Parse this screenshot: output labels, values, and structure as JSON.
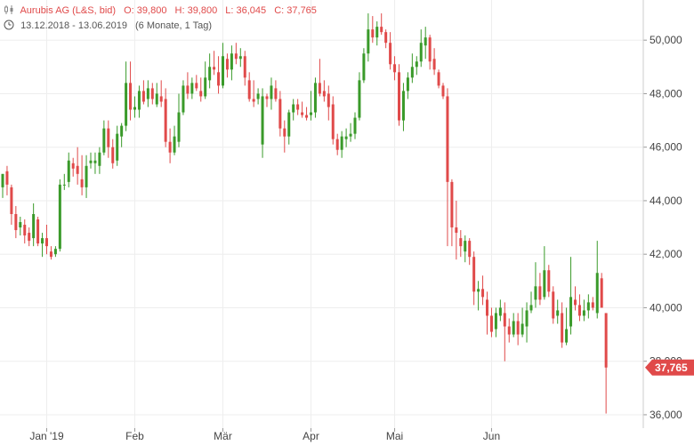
{
  "header": {
    "title": "Aurubis AG (L&S, bid)",
    "open": "O: 39,800",
    "high": "H: 39,800",
    "low": "L: 36,045",
    "close": "C: 37,765",
    "date_range": "13.12.2018 - 13.06.2019",
    "period": "(6 Monate, 1 Tag)",
    "icons": [
      "candlestick-icon",
      "clock-icon"
    ]
  },
  "colors": {
    "up": "#3a9a2a",
    "down": "#e04a4a",
    "grid": "#eeeeee",
    "badge": "#e04a4a"
  },
  "last_price_label": "37,765",
  "chart_data": {
    "type": "candlestick",
    "title": "Aurubis AG (L&S, bid)",
    "ylim": [
      35500,
      51500
    ],
    "y_ticks": [
      36000,
      38000,
      40000,
      42000,
      44000,
      46000,
      48000,
      50000
    ],
    "y_tick_labels": [
      "36,000",
      "38,000",
      "40,000",
      "42,000",
      "44,000",
      "46,000",
      "48,000",
      "50,000"
    ],
    "x_ticks": [
      {
        "label": "Jan '19",
        "index": 10
      },
      {
        "label": "Feb",
        "index": 30
      },
      {
        "label": "Mär",
        "index": 50
      },
      {
        "label": "Apr",
        "index": 70
      },
      {
        "label": "Mai",
        "index": 89
      },
      {
        "label": "Jun",
        "index": 111
      }
    ],
    "last_price": 37765,
    "candles": [
      [
        44500,
        45000,
        44100,
        45000
      ],
      [
        45100,
        45300,
        44200,
        44600
      ],
      [
        44500,
        44600,
        43100,
        43500
      ],
      [
        43500,
        43800,
        42600,
        42900
      ],
      [
        43000,
        43400,
        42700,
        43200
      ],
      [
        43100,
        43300,
        42400,
        42700
      ],
      [
        42800,
        43000,
        42300,
        42500
      ],
      [
        42600,
        43900,
        42300,
        43500
      ],
      [
        43300,
        43400,
        42300,
        42400
      ],
      [
        42400,
        42800,
        41900,
        42600
      ],
      [
        42600,
        43100,
        42000,
        42300
      ],
      [
        42100,
        42300,
        41800,
        41900
      ],
      [
        42000,
        42300,
        41900,
        42200
      ],
      [
        42200,
        44800,
        42100,
        44600
      ],
      [
        44600,
        45000,
        44400,
        44600
      ],
      [
        44700,
        45800,
        44500,
        45500
      ],
      [
        45400,
        45600,
        44900,
        45200
      ],
      [
        45300,
        46000,
        44600,
        45000
      ],
      [
        44800,
        45700,
        44200,
        44500
      ],
      [
        44500,
        45700,
        44100,
        45300
      ],
      [
        45400,
        45800,
        45200,
        45500
      ],
      [
        45400,
        45800,
        45000,
        45500
      ],
      [
        45300,
        46000,
        45000,
        45800
      ],
      [
        45800,
        47000,
        45700,
        46700
      ],
      [
        46700,
        47000,
        45600,
        46000
      ],
      [
        46000,
        46300,
        45200,
        45400
      ],
      [
        45500,
        46800,
        45300,
        46500
      ],
      [
        46400,
        46900,
        46000,
        46800
      ],
      [
        46800,
        49200,
        46600,
        48400
      ],
      [
        48400,
        49200,
        47000,
        47400
      ],
      [
        47400,
        47900,
        47100,
        47500
      ],
      [
        47400,
        48300,
        47100,
        48100
      ],
      [
        48100,
        48500,
        47600,
        47700
      ],
      [
        47800,
        48500,
        47500,
        48200
      ],
      [
        48200,
        48400,
        47600,
        47800
      ],
      [
        47600,
        48400,
        47500,
        48000
      ],
      [
        47900,
        48500,
        47500,
        47700
      ],
      [
        47800,
        48200,
        46000,
        46200
      ],
      [
        46200,
        46700,
        45400,
        45800
      ],
      [
        45800,
        46800,
        45700,
        46400
      ],
      [
        46200,
        48000,
        46000,
        47300
      ],
      [
        47300,
        48500,
        47200,
        48300
      ],
      [
        48300,
        48800,
        47800,
        48000
      ],
      [
        48000,
        48600,
        47800,
        48400
      ],
      [
        48400,
        48700,
        48100,
        48200
      ],
      [
        48100,
        48600,
        47700,
        47900
      ],
      [
        47900,
        49200,
        47800,
        48600
      ],
      [
        48500,
        49500,
        48200,
        49000
      ],
      [
        49000,
        49600,
        48700,
        48900
      ],
      [
        48800,
        49400,
        48000,
        48300
      ],
      [
        48300,
        49900,
        48200,
        49400
      ],
      [
        49300,
        49500,
        48600,
        48900
      ],
      [
        48900,
        49800,
        48500,
        49500
      ],
      [
        49500,
        49900,
        49100,
        49300
      ],
      [
        49300,
        49700,
        49000,
        49400
      ],
      [
        49400,
        49600,
        48300,
        48600
      ],
      [
        48500,
        48800,
        47700,
        47800
      ],
      [
        47800,
        48500,
        47500,
        47700
      ],
      [
        47800,
        48200,
        47600,
        48000
      ],
      [
        46100,
        48200,
        45600,
        47900
      ],
      [
        47900,
        48000,
        47500,
        47800
      ],
      [
        47800,
        48600,
        47400,
        48300
      ],
      [
        48200,
        48500,
        47700,
        47800
      ],
      [
        47800,
        48100,
        46400,
        46700
      ],
      [
        46700,
        47000,
        45800,
        46400
      ],
      [
        46400,
        47400,
        46100,
        47300
      ],
      [
        47300,
        47800,
        47000,
        47600
      ],
      [
        47600,
        47800,
        47200,
        47400
      ],
      [
        47300,
        47700,
        47100,
        47200
      ],
      [
        47200,
        47500,
        47000,
        47100
      ],
      [
        47200,
        48100,
        47000,
        47300
      ],
      [
        47300,
        48600,
        47100,
        48400
      ],
      [
        48400,
        49300,
        47900,
        48000
      ],
      [
        48100,
        48500,
        47700,
        47900
      ],
      [
        48000,
        48300,
        47000,
        47500
      ],
      [
        47600,
        47900,
        46100,
        46300
      ],
      [
        46300,
        46500,
        45700,
        45900
      ],
      [
        45900,
        46600,
        45600,
        46400
      ],
      [
        46300,
        46700,
        46000,
        46400
      ],
      [
        46400,
        46900,
        46200,
        46500
      ],
      [
        46500,
        47300,
        46300,
        47100
      ],
      [
        47100,
        48800,
        47000,
        48500
      ],
      [
        48500,
        49700,
        48400,
        49500
      ],
      [
        49500,
        51000,
        49200,
        50400
      ],
      [
        50400,
        50900,
        49900,
        50100
      ],
      [
        50100,
        50700,
        49800,
        50500
      ],
      [
        50500,
        51000,
        50200,
        50300
      ],
      [
        50300,
        50400,
        49700,
        49900
      ],
      [
        49900,
        50300,
        48900,
        49100
      ],
      [
        49100,
        49400,
        48500,
        48800
      ],
      [
        48800,
        49100,
        46800,
        47000
      ],
      [
        47000,
        48400,
        46600,
        48100
      ],
      [
        48100,
        48800,
        47800,
        48600
      ],
      [
        48600,
        49500,
        48400,
        49000
      ],
      [
        49000,
        49400,
        48700,
        49200
      ],
      [
        49200,
        50400,
        49000,
        49900
      ],
      [
        49800,
        50500,
        49300,
        50100
      ],
      [
        50100,
        50200,
        48900,
        49200
      ],
      [
        49300,
        49700,
        48700,
        48900
      ],
      [
        48800,
        48900,
        48200,
        48300
      ],
      [
        48300,
        48400,
        47800,
        47900
      ],
      [
        47900,
        48200,
        42300,
        44700
      ],
      [
        44700,
        44800,
        42300,
        43000
      ],
      [
        43000,
        44000,
        41800,
        42800
      ],
      [
        42600,
        42900,
        41900,
        42300
      ],
      [
        42100,
        42700,
        41700,
        42500
      ],
      [
        42500,
        42600,
        41600,
        41900
      ],
      [
        41900,
        42100,
        40100,
        40600
      ],
      [
        40600,
        41000,
        39900,
        40700
      ],
      [
        40700,
        41200,
        40100,
        40400
      ],
      [
        40300,
        40600,
        39000,
        39700
      ],
      [
        39700,
        40000,
        38900,
        39100
      ],
      [
        39200,
        40000,
        38900,
        39800
      ],
      [
        39700,
        40300,
        39500,
        40000
      ],
      [
        39800,
        40200,
        38000,
        39300
      ],
      [
        39300,
        39600,
        38700,
        39000
      ],
      [
        39000,
        39800,
        38900,
        39500
      ],
      [
        39500,
        39800,
        38600,
        39000
      ],
      [
        39000,
        40000,
        38900,
        39400
      ],
      [
        39300,
        40200,
        38700,
        39900
      ],
      [
        39900,
        40600,
        39800,
        40100
      ],
      [
        40300,
        41700,
        40000,
        40800
      ],
      [
        40800,
        41300,
        40100,
        40300
      ],
      [
        40400,
        42300,
        40300,
        41400
      ],
      [
        41400,
        41600,
        40400,
        40600
      ],
      [
        40600,
        40800,
        39400,
        39600
      ],
      [
        39700,
        40300,
        39400,
        39900
      ],
      [
        39800,
        40200,
        38500,
        38700
      ],
      [
        38700,
        40000,
        38600,
        39200
      ],
      [
        39300,
        41900,
        39000,
        40400
      ],
      [
        40300,
        40800,
        39900,
        40100
      ],
      [
        40100,
        40500,
        39500,
        39700
      ],
      [
        39700,
        40300,
        39500,
        39900
      ],
      [
        39900,
        40500,
        39600,
        40200
      ],
      [
        40200,
        40400,
        39900,
        40000
      ],
      [
        39800,
        42500,
        39600,
        41300
      ],
      [
        41100,
        41300,
        40000,
        40000
      ],
      [
        39800,
        39800,
        36045,
        37765
      ]
    ]
  }
}
